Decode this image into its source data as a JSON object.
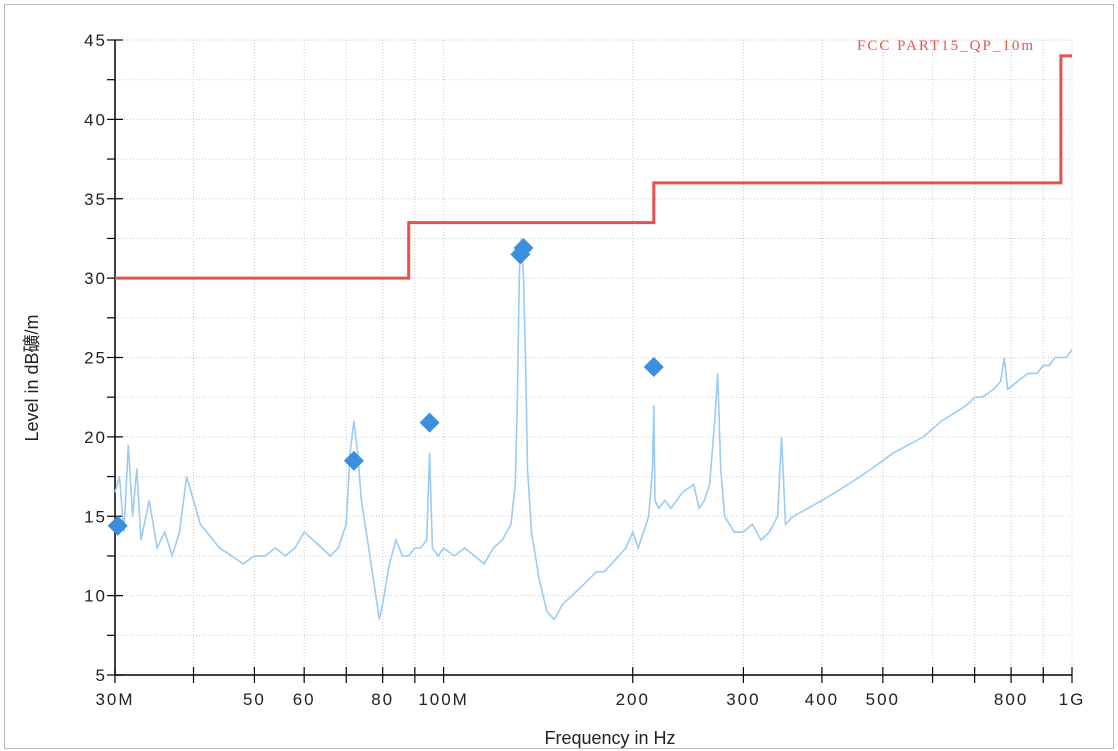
{
  "chart_data": {
    "type": "line",
    "xlabel": "Frequency in Hz",
    "ylabel": "Level in dB礦/m",
    "x_scale": "log",
    "xlim": [
      30000000,
      1000000000
    ],
    "ylim": [
      5,
      45
    ],
    "grid": true,
    "x_ticks": [
      {
        "value": 30000000,
        "label": "30M"
      },
      {
        "value": 40000000,
        "label": ""
      },
      {
        "value": 50000000,
        "label": "50"
      },
      {
        "value": 60000000,
        "label": "60"
      },
      {
        "value": 70000000,
        "label": ""
      },
      {
        "value": 80000000,
        "label": "80"
      },
      {
        "value": 90000000,
        "label": ""
      },
      {
        "value": 100000000,
        "label": "100M"
      },
      {
        "value": 200000000,
        "label": "200"
      },
      {
        "value": 300000000,
        "label": "300"
      },
      {
        "value": 400000000,
        "label": "400"
      },
      {
        "value": 500000000,
        "label": "500"
      },
      {
        "value": 600000000,
        "label": ""
      },
      {
        "value": 700000000,
        "label": ""
      },
      {
        "value": 800000000,
        "label": "800"
      },
      {
        "value": 900000000,
        "label": ""
      },
      {
        "value": 1000000000,
        "label": "1G"
      }
    ],
    "y_ticks": [
      {
        "value": 5,
        "label": "5"
      },
      {
        "value": 10,
        "label": "10"
      },
      {
        "value": 15,
        "label": "15"
      },
      {
        "value": 20,
        "label": "20"
      },
      {
        "value": 25,
        "label": "25"
      },
      {
        "value": 30,
        "label": "30"
      },
      {
        "value": 35,
        "label": "35"
      },
      {
        "value": 40,
        "label": "40"
      },
      {
        "value": 45,
        "label": "45"
      }
    ],
    "series": [
      {
        "name": "FCC PART15_QP_10m",
        "kind": "limit",
        "color": "#e8504c",
        "points": [
          [
            30000000,
            30.0
          ],
          [
            88000000,
            30.0
          ],
          [
            88000000,
            33.5
          ],
          [
            216000000,
            33.5
          ],
          [
            216000000,
            36.0
          ],
          [
            960000000,
            36.0
          ],
          [
            960000000,
            44.0
          ],
          [
            1000000000,
            44.0
          ]
        ]
      },
      {
        "kind": "spectrum",
        "color": "#9ccbf3",
        "points": [
          [
            30000000,
            16.5
          ],
          [
            30500000,
            17.5
          ],
          [
            31000000,
            14.0
          ],
          [
            31500000,
            19.5
          ],
          [
            32000000,
            15.0
          ],
          [
            32500000,
            18.0
          ],
          [
            33000000,
            13.5
          ],
          [
            34000000,
            16.0
          ],
          [
            35000000,
            13.0
          ],
          [
            36000000,
            14.0
          ],
          [
            37000000,
            12.5
          ],
          [
            38000000,
            14.0
          ],
          [
            39000000,
            17.5
          ],
          [
            40000000,
            16.0
          ],
          [
            41000000,
            14.5
          ],
          [
            42000000,
            14.0
          ],
          [
            44000000,
            13.0
          ],
          [
            46000000,
            12.5
          ],
          [
            48000000,
            12.0
          ],
          [
            50000000,
            12.5
          ],
          [
            52000000,
            12.5
          ],
          [
            54000000,
            13.0
          ],
          [
            56000000,
            12.5
          ],
          [
            58000000,
            13.0
          ],
          [
            60000000,
            14.0
          ],
          [
            62000000,
            13.5
          ],
          [
            64000000,
            13.0
          ],
          [
            66000000,
            12.5
          ],
          [
            68000000,
            13.0
          ],
          [
            70000000,
            14.5
          ],
          [
            71000000,
            19.0
          ],
          [
            72000000,
            21.0
          ],
          [
            73000000,
            19.0
          ],
          [
            74000000,
            16.0
          ],
          [
            76000000,
            13.0
          ],
          [
            78000000,
            10.0
          ],
          [
            79000000,
            8.5
          ],
          [
            80000000,
            9.5
          ],
          [
            82000000,
            12.0
          ],
          [
            84000000,
            13.5
          ],
          [
            86000000,
            12.5
          ],
          [
            88000000,
            12.5
          ],
          [
            90000000,
            13.0
          ],
          [
            92000000,
            13.0
          ],
          [
            94000000,
            13.5
          ],
          [
            95000000,
            19.0
          ],
          [
            96000000,
            13.0
          ],
          [
            98000000,
            12.5
          ],
          [
            100000000,
            13.0
          ],
          [
            104000000,
            12.5
          ],
          [
            108000000,
            13.0
          ],
          [
            112000000,
            12.5
          ],
          [
            116000000,
            12.0
          ],
          [
            120000000,
            13.0
          ],
          [
            124000000,
            13.5
          ],
          [
            128000000,
            14.5
          ],
          [
            130000000,
            17.0
          ],
          [
            131000000,
            22.0
          ],
          [
            132000000,
            30.5
          ],
          [
            133000000,
            32.5
          ],
          [
            134000000,
            30.0
          ],
          [
            135000000,
            25.0
          ],
          [
            136000000,
            18.0
          ],
          [
            138000000,
            14.0
          ],
          [
            142000000,
            11.0
          ],
          [
            146000000,
            9.0
          ],
          [
            150000000,
            8.5
          ],
          [
            155000000,
            9.5
          ],
          [
            160000000,
            10.0
          ],
          [
            165000000,
            10.5
          ],
          [
            170000000,
            11.0
          ],
          [
            175000000,
            11.5
          ],
          [
            180000000,
            11.5
          ],
          [
            185000000,
            12.0
          ],
          [
            190000000,
            12.5
          ],
          [
            195000000,
            13.0
          ],
          [
            200000000,
            14.0
          ],
          [
            204000000,
            13.0
          ],
          [
            208000000,
            14.0
          ],
          [
            212000000,
            15.0
          ],
          [
            215000000,
            18.0
          ],
          [
            216000000,
            22.0
          ],
          [
            217000000,
            16.0
          ],
          [
            220000000,
            15.5
          ],
          [
            225000000,
            16.0
          ],
          [
            230000000,
            15.5
          ],
          [
            240000000,
            16.5
          ],
          [
            250000000,
            17.0
          ],
          [
            255000000,
            15.5
          ],
          [
            260000000,
            16.0
          ],
          [
            265000000,
            17.0
          ],
          [
            270000000,
            21.0
          ],
          [
            273000000,
            24.0
          ],
          [
            276000000,
            18.0
          ],
          [
            280000000,
            15.0
          ],
          [
            290000000,
            14.0
          ],
          [
            300000000,
            14.0
          ],
          [
            310000000,
            14.5
          ],
          [
            320000000,
            13.5
          ],
          [
            330000000,
            14.0
          ],
          [
            340000000,
            15.0
          ],
          [
            345000000,
            20.0
          ],
          [
            350000000,
            14.5
          ],
          [
            360000000,
            15.0
          ],
          [
            380000000,
            15.5
          ],
          [
            400000000,
            16.0
          ],
          [
            420000000,
            16.5
          ],
          [
            440000000,
            17.0
          ],
          [
            460000000,
            17.5
          ],
          [
            480000000,
            18.0
          ],
          [
            500000000,
            18.5
          ],
          [
            520000000,
            19.0
          ],
          [
            550000000,
            19.5
          ],
          [
            580000000,
            20.0
          ],
          [
            600000000,
            20.5
          ],
          [
            620000000,
            21.0
          ],
          [
            650000000,
            21.5
          ],
          [
            680000000,
            22.0
          ],
          [
            700000000,
            22.5
          ],
          [
            720000000,
            22.5
          ],
          [
            750000000,
            23.0
          ],
          [
            770000000,
            23.5
          ],
          [
            780000000,
            25.0
          ],
          [
            790000000,
            23.0
          ],
          [
            820000000,
            23.5
          ],
          [
            850000000,
            24.0
          ],
          [
            880000000,
            24.0
          ],
          [
            900000000,
            24.5
          ],
          [
            920000000,
            24.5
          ],
          [
            940000000,
            25.0
          ],
          [
            960000000,
            25.0
          ],
          [
            980000000,
            25.0
          ],
          [
            1000000000,
            25.5
          ]
        ]
      },
      {
        "kind": "peaks",
        "color": "#3b8fdc",
        "points": [
          [
            30300000,
            14.4
          ],
          [
            72000000,
            18.5
          ],
          [
            95000000,
            20.9
          ],
          [
            132500000,
            31.5
          ],
          [
            134000000,
            31.9
          ],
          [
            216000000,
            24.4
          ]
        ]
      }
    ]
  }
}
